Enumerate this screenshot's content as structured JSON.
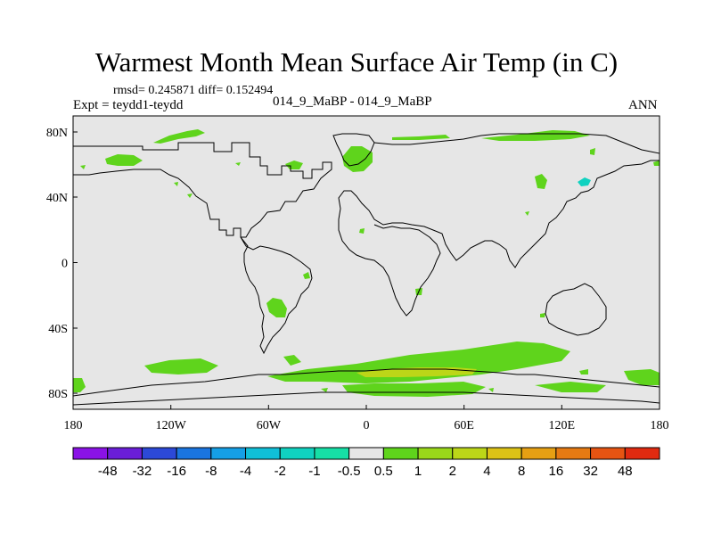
{
  "title": "Warmest Month Mean Surface Air Temp (in C)",
  "stats": "rmsd= 0.245871  diff= 0.152494",
  "left_subtitle": "Expt = teydd1-teydd",
  "center_subtitle": "014_9_MaBP - 014_9_MaBP",
  "right_subtitle": "ANN",
  "x_ticks": [
    "180",
    "120W",
    "60W",
    "0",
    "60E",
    "120E",
    "180"
  ],
  "y_ticks": [
    "80N",
    "40N",
    "0",
    "40S",
    "80S"
  ],
  "colorbar": {
    "labels": [
      "-48",
      "-32",
      "-16",
      "-8",
      "-4",
      "-2",
      "-1",
      "-0.5",
      "0.5",
      "1",
      "2",
      "4",
      "8",
      "16",
      "32",
      "48"
    ],
    "colors": [
      "#8a12e6",
      "#6a1ed8",
      "#2c49d8",
      "#1a75e0",
      "#159fe6",
      "#10bfd8",
      "#10d2c0",
      "#16dfa6",
      "#e6e6e6",
      "#5fd41c",
      "#9ad81a",
      "#bcd618",
      "#dcc216",
      "#e6a013",
      "#e67a12",
      "#e65412",
      "#e02a10"
    ]
  },
  "colors": {
    "background_field": "#e6e6e6",
    "positive_small": "#5fd41c",
    "positive_medium": "#bcd618",
    "negative_small": "#10d2c0"
  }
}
